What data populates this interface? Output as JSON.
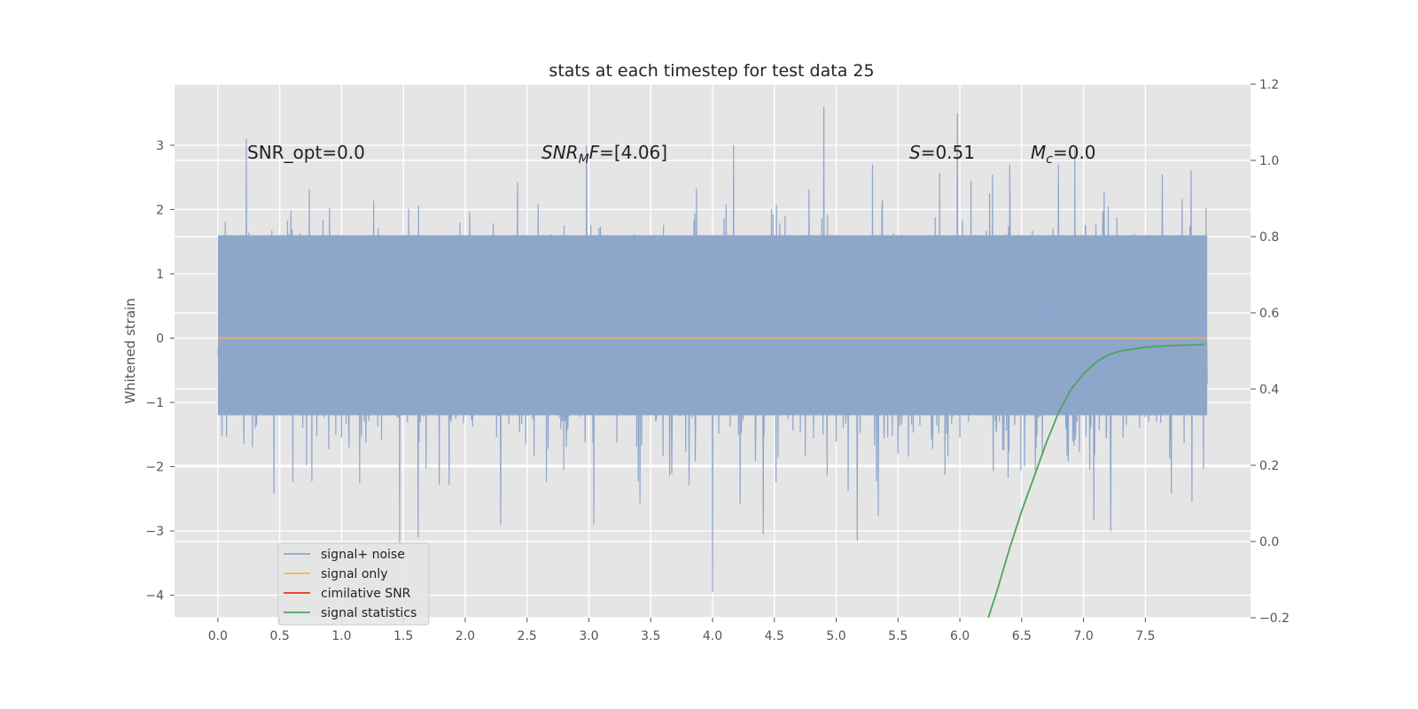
{
  "chart_data": {
    "type": "line",
    "title": "stats at each timestep for test data 25",
    "ylabel": "Whitened strain",
    "xlim": [
      -0.35,
      8.35
    ],
    "ylim": [
      -4.35,
      3.95
    ],
    "y2lim": [
      -0.2,
      1.2
    ],
    "x_ticks": [
      "0.0",
      "0.5",
      "1.0",
      "1.5",
      "2.0",
      "2.5",
      "3.0",
      "3.5",
      "4.0",
      "4.5",
      "5.0",
      "5.5",
      "6.0",
      "6.5",
      "7.0",
      "7.5"
    ],
    "y_ticks": [
      "3",
      "2",
      "1",
      "0",
      "−1",
      "−2",
      "−3",
      "−4"
    ],
    "y2_ticks": [
      "1.2",
      "1.0",
      "0.8",
      "0.6",
      "0.4",
      "0.2",
      "0.0",
      "−0.2"
    ],
    "grid": true,
    "legend_position": "lower-left",
    "legend": [
      "signal+ noise",
      "signal only",
      "cimilative SNR",
      "signal statistics"
    ],
    "annotations": {
      "snr_opt": "SNR_opt=0.0",
      "snr_mf_main": "SNR",
      "snr_mf_sub": "M",
      "snr_mf_rest": "F",
      "snr_mf_value": "=[4.06]",
      "s_label": "S",
      "s_value": "=0.51",
      "mc_main": "M",
      "mc_sub": "c",
      "mc_value": "=0.0"
    },
    "series": [
      {
        "name": "signal+ noise",
        "axis": "left",
        "color": "#8fa6cb",
        "x_range": [
          0.0,
          8.0
        ],
        "typical_range": [
          -1.2,
          1.6
        ],
        "notable_points": [
          {
            "x": 0.23,
            "y": 3.1
          },
          {
            "x": 1.47,
            "y": -3.2
          },
          {
            "x": 1.62,
            "y": -3.1
          },
          {
            "x": 2.98,
            "y": 3.0
          },
          {
            "x": 4.0,
            "y": -3.95
          },
          {
            "x": 4.17,
            "y": 3.0
          },
          {
            "x": 4.41,
            "y": -3.05
          },
          {
            "x": 4.9,
            "y": 3.6
          },
          {
            "x": 5.17,
            "y": -3.15
          },
          {
            "x": 5.98,
            "y": 3.5
          },
          {
            "x": 6.93,
            "y": 2.95
          },
          {
            "x": 7.22,
            "y": -3.0
          }
        ]
      },
      {
        "name": "signal only",
        "axis": "left",
        "color": "#f0b45a",
        "x": [
          0.0,
          8.0
        ],
        "y": [
          0.0,
          0.0
        ]
      },
      {
        "name": "cimilative SNR",
        "axis": "right",
        "color": "#e8321e",
        "x": [],
        "y": []
      },
      {
        "name": "signal statistics",
        "axis": "right",
        "color": "#4ea45c",
        "x": [
          6.23,
          6.3,
          6.4,
          6.5,
          6.6,
          6.7,
          6.8,
          6.9,
          7.0,
          7.1,
          7.2,
          7.3,
          7.4,
          7.5,
          7.6,
          7.7,
          7.8,
          7.9,
          7.98
        ],
        "y": [
          -0.2,
          -0.13,
          -0.02,
          0.08,
          0.17,
          0.26,
          0.34,
          0.4,
          0.44,
          0.47,
          0.49,
          0.5,
          0.505,
          0.51,
          0.512,
          0.514,
          0.515,
          0.516,
          0.517
        ]
      }
    ]
  }
}
